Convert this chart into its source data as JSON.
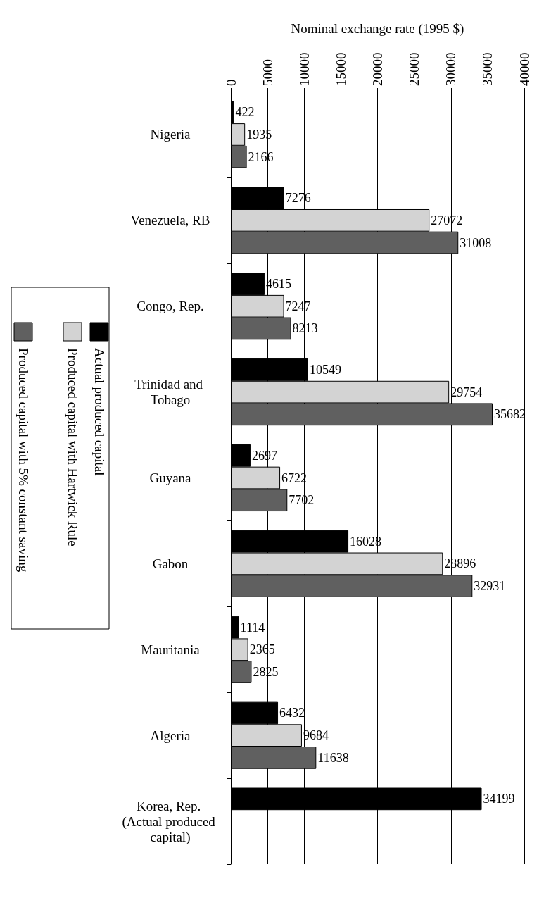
{
  "chart_data": {
    "type": "bar",
    "orientation": "horizontal",
    "xlabel": "Nominal exchange rate (1995 $)",
    "categories": [
      "Nigeria",
      "Venezuela, RB",
      "Congo, Rep.",
      "Trinidad and Tobago",
      "Guyana",
      "Gabon",
      "Mauritania",
      "Algeria",
      "Korea, Rep. (Actual produced capital)"
    ],
    "series": [
      {
        "name": "Actual produced capital",
        "color": "#000000",
        "values": [
          422,
          7276,
          4615,
          10549,
          2697,
          16028,
          1114,
          6432,
          34199
        ]
      },
      {
        "name": "Produced capital with Hartwick Rule",
        "color": "#d3d3d3",
        "values": [
          1935,
          27072,
          7247,
          29754,
          6722,
          28896,
          2365,
          9684,
          null
        ]
      },
      {
        "name": "Produced capital with 5% constant saving",
        "color": "#606060",
        "values": [
          2166,
          31008,
          8213,
          35682,
          7702,
          32931,
          2825,
          11638,
          null
        ]
      }
    ],
    "xlim": [
      0,
      40000
    ],
    "xticks": [
      0,
      5000,
      10000,
      15000,
      20000,
      25000,
      30000,
      35000,
      40000
    ],
    "grid": "x",
    "legend": "left",
    "data_labels": true
  }
}
